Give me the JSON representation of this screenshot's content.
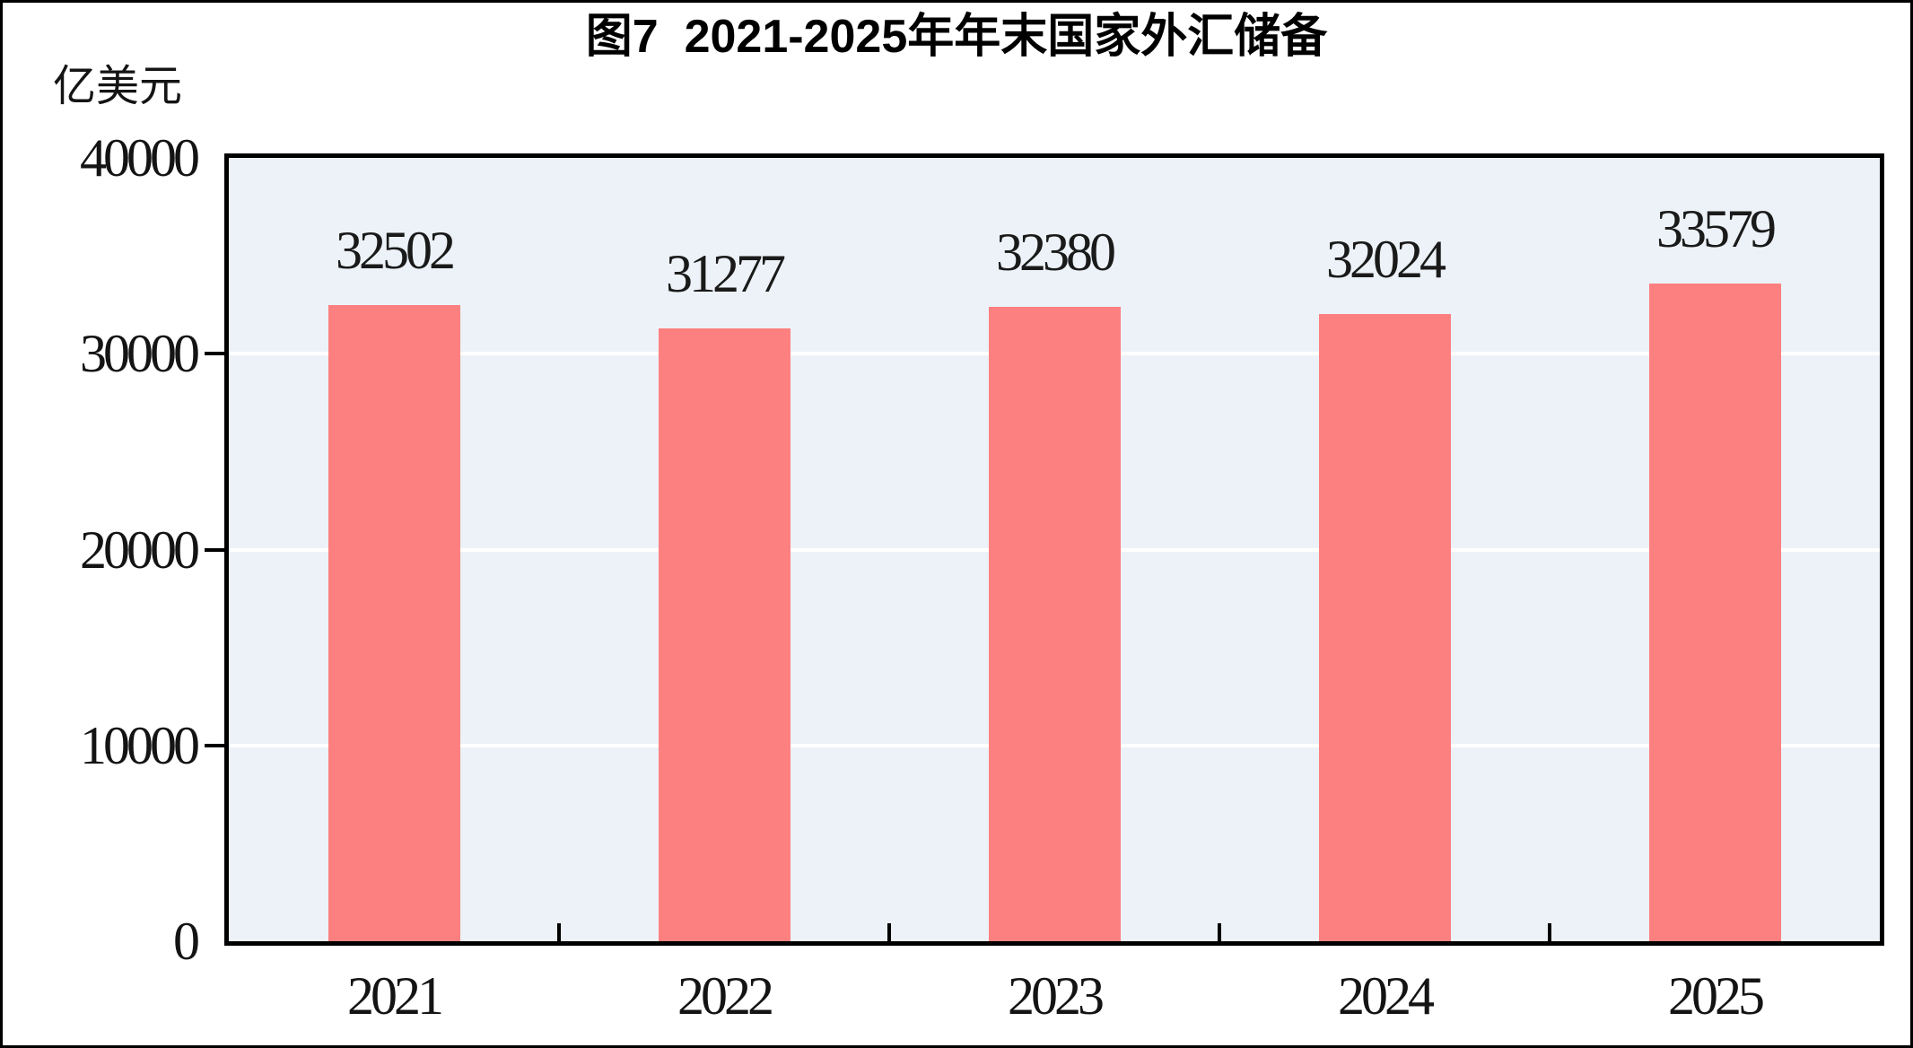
{
  "figure": {
    "title": "图7  2021-2025年年末国家外汇储备",
    "unit_label": "亿美元"
  },
  "chart_data": {
    "type": "bar",
    "title": "图7  2021-2025年年末国家外汇储备",
    "xlabel": "",
    "ylabel": "亿美元",
    "categories": [
      "2021",
      "2022",
      "2023",
      "2024",
      "2025"
    ],
    "values": [
      32502,
      31277,
      32380,
      32024,
      33579
    ],
    "data_labels": [
      "32502",
      "31277",
      "32380",
      "32024",
      "33579"
    ],
    "ylim": [
      0,
      40000
    ],
    "yticks": [
      0,
      10000,
      20000,
      30000,
      40000
    ],
    "grid": "horizontal",
    "legend": "none",
    "colors": {
      "bar_fill": "#FD8080",
      "plot_background": "#ECF2F7",
      "gridline": "#FFFFFF",
      "axis_frame": "#000000",
      "text": "#141414"
    }
  }
}
